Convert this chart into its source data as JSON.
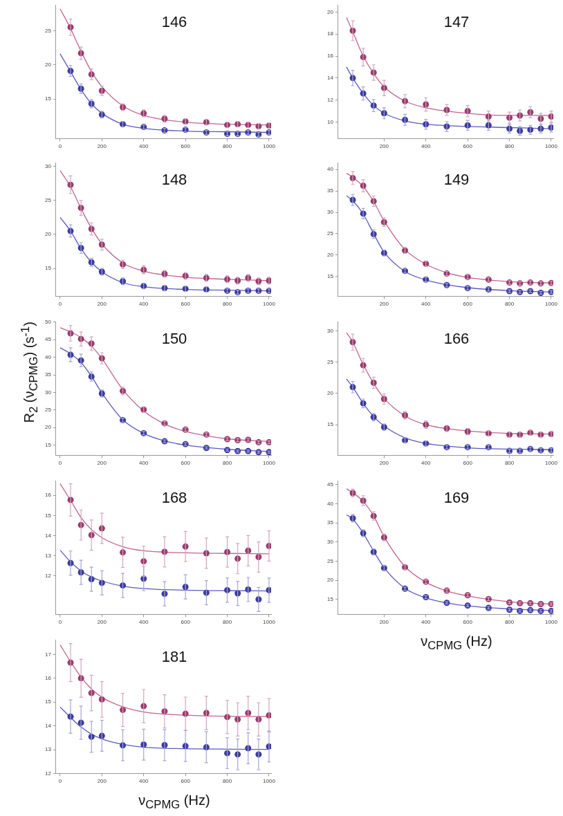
{
  "chart_data": [
    {
      "type": "scatter",
      "title": "146",
      "x": [
        50,
        100,
        150,
        200,
        300,
        400,
        500,
        600,
        700,
        800,
        850,
        900,
        950,
        1000
      ],
      "xlim": [
        -20,
        1010
      ],
      "xticks": [
        0,
        200,
        400,
        600,
        800,
        1000
      ],
      "ylim": [
        9.2,
        28.7
      ],
      "yticks": [
        15,
        20,
        25
      ],
      "series": [
        {
          "marker": "circle",
          "color": "#9a3a6c",
          "values": [
            25.5,
            21.7,
            18.6,
            16.2,
            13.8,
            12.9,
            12.1,
            11.7,
            11.6,
            11.2,
            11.3,
            11.2,
            11.0,
            11.1
          ],
          "errors": [
            1.2,
            0.9,
            0.8,
            0.7,
            0.5,
            0.5,
            0.5,
            0.4,
            0.4,
            0.4,
            0.4,
            0.4,
            0.4,
            0.4
          ]
        },
        {
          "marker": "circle",
          "color": "#3b3aa0",
          "values": [
            19.1,
            16.5,
            14.3,
            12.7,
            11.3,
            10.9,
            10.4,
            10.5,
            10.1,
            9.9,
            9.9,
            10.1,
            9.8,
            10.1
          ],
          "errors": [
            0.8,
            0.7,
            0.6,
            0.5,
            0.4,
            0.3,
            0.3,
            0.3,
            0.3,
            0.3,
            0.3,
            0.3,
            0.3,
            0.3
          ]
        },
        {
          "type": "line",
          "color": "#c0648f",
          "x": [
            0,
            50,
            100,
            150,
            200,
            300,
            400,
            600,
            800,
            1000
          ],
          "values": [
            28.2,
            25.3,
            22.0,
            19.0,
            16.8,
            14.0,
            12.6,
            11.6,
            11.3,
            11.2
          ]
        },
        {
          "type": "line",
          "color": "#5a5ac0",
          "x": [
            0,
            50,
            100,
            150,
            200,
            300,
            400,
            600,
            800,
            1000
          ],
          "values": [
            21.6,
            19.0,
            16.4,
            14.3,
            12.9,
            11.3,
            10.7,
            10.3,
            10.2,
            10.1
          ]
        }
      ]
    },
    {
      "type": "scatter",
      "title": "147",
      "x": [
        50,
        100,
        150,
        200,
        300,
        400,
        500,
        600,
        700,
        800,
        850,
        900,
        950,
        1000
      ],
      "xlim": [
        -20,
        1010
      ],
      "xticks": [
        200,
        400,
        600,
        800,
        1000
      ],
      "ylim": [
        8.5,
        20.6
      ],
      "yticks": [
        10,
        12,
        14,
        16,
        18,
        20
      ],
      "series": [
        {
          "marker": "circle",
          "color": "#9a3a6c",
          "values": [
            18.3,
            15.9,
            14.5,
            13.1,
            11.9,
            11.6,
            11.1,
            11.0,
            10.5,
            10.4,
            10.6,
            10.9,
            10.3,
            10.5
          ],
          "errors": [
            0.9,
            0.8,
            0.7,
            0.7,
            0.6,
            0.6,
            0.5,
            0.5,
            0.5,
            0.5,
            0.5,
            0.5,
            0.5,
            0.5
          ]
        },
        {
          "marker": "circle",
          "color": "#3b3aa0",
          "values": [
            14.0,
            12.6,
            11.5,
            10.8,
            10.2,
            9.8,
            9.6,
            9.7,
            9.7,
            9.4,
            9.2,
            9.3,
            9.4,
            9.5
          ],
          "errors": [
            0.7,
            0.6,
            0.55,
            0.5,
            0.5,
            0.45,
            0.45,
            0.45,
            0.45,
            0.4,
            0.4,
            0.4,
            0.4,
            0.4
          ]
        },
        {
          "type": "line",
          "color": "#c0648f",
          "x": [
            20,
            50,
            100,
            150,
            200,
            300,
            400,
            600,
            800,
            1000
          ],
          "values": [
            19.5,
            18.2,
            16.0,
            14.4,
            13.2,
            11.9,
            11.3,
            10.8,
            10.6,
            10.6
          ]
        },
        {
          "type": "line",
          "color": "#5a5ac0",
          "x": [
            20,
            50,
            100,
            150,
            200,
            300,
            400,
            600,
            800,
            1000
          ],
          "values": [
            15.0,
            14.0,
            12.6,
            11.5,
            10.8,
            10.1,
            9.8,
            9.6,
            9.5,
            9.4
          ]
        }
      ]
    },
    {
      "type": "scatter",
      "title": "148",
      "x": [
        50,
        100,
        150,
        200,
        300,
        400,
        500,
        600,
        700,
        800,
        850,
        900,
        950,
        1000
      ],
      "xlim": [
        -20,
        1010
      ],
      "xticks": [
        0,
        200,
        400,
        600,
        800,
        1000
      ],
      "ylim": [
        10.9,
        30.5
      ],
      "yticks": [
        15,
        20,
        25,
        30
      ],
      "series": [
        {
          "marker": "circle",
          "color": "#9a3a6c",
          "values": [
            27.3,
            23.9,
            20.8,
            18.5,
            15.6,
            14.8,
            14.2,
            13.9,
            13.6,
            13.4,
            13.2,
            13.6,
            13.1,
            13.2
          ],
          "errors": [
            1.3,
            1.1,
            0.9,
            0.8,
            0.6,
            0.6,
            0.5,
            0.5,
            0.5,
            0.5,
            0.5,
            0.5,
            0.5,
            0.5
          ]
        },
        {
          "marker": "circle",
          "color": "#3b3aa0",
          "values": [
            20.5,
            18.0,
            15.9,
            14.5,
            13.1,
            12.4,
            12.1,
            12.0,
            11.9,
            11.7,
            11.5,
            11.7,
            11.7,
            11.7
          ],
          "errors": [
            0.9,
            0.8,
            0.6,
            0.5,
            0.5,
            0.4,
            0.4,
            0.4,
            0.4,
            0.3,
            0.3,
            0.3,
            0.3,
            0.3
          ]
        },
        {
          "type": "line",
          "color": "#c0648f",
          "x": [
            0,
            50,
            100,
            150,
            200,
            300,
            400,
            600,
            800,
            1000
          ],
          "values": [
            29.4,
            27.0,
            23.8,
            20.9,
            18.6,
            15.8,
            14.6,
            13.7,
            13.4,
            13.2
          ]
        },
        {
          "type": "line",
          "color": "#5a5ac0",
          "x": [
            0,
            50,
            100,
            150,
            200,
            300,
            400,
            600,
            800,
            1000
          ],
          "values": [
            22.5,
            20.5,
            17.9,
            15.9,
            14.5,
            12.9,
            12.3,
            11.9,
            11.8,
            11.7
          ]
        }
      ]
    },
    {
      "type": "scatter",
      "title": "149",
      "x": [
        50,
        100,
        150,
        200,
        300,
        400,
        500,
        600,
        700,
        800,
        850,
        900,
        950,
        1000
      ],
      "xlim": [
        -20,
        1010
      ],
      "xticks": [
        200,
        400,
        600,
        800,
        1000
      ],
      "ylim": [
        10.4,
        41.5
      ],
      "yticks": [
        15,
        20,
        25,
        30,
        35,
        40
      ],
      "series": [
        {
          "marker": "circle",
          "color": "#9a3a6c",
          "values": [
            38.0,
            36.2,
            32.6,
            27.7,
            21.1,
            18.0,
            15.7,
            14.9,
            14.3,
            13.6,
            13.4,
            13.6,
            13.4,
            13.5
          ],
          "errors": [
            1.5,
            1.4,
            1.2,
            1.0,
            0.7,
            0.6,
            0.5,
            0.5,
            0.4,
            0.4,
            0.4,
            0.4,
            0.4,
            0.4
          ]
        },
        {
          "marker": "circle",
          "color": "#3b3aa0",
          "values": [
            32.9,
            29.7,
            24.9,
            20.5,
            16.3,
            14.3,
            13.0,
            12.3,
            12.0,
            11.6,
            11.4,
            11.6,
            11.2,
            11.4
          ],
          "errors": [
            1.3,
            1.2,
            1.0,
            0.7,
            0.5,
            0.5,
            0.4,
            0.4,
            0.4,
            0.3,
            0.3,
            0.3,
            0.3,
            0.3
          ]
        },
        {
          "type": "line",
          "color": "#c0648f",
          "x": [
            20,
            50,
            100,
            150,
            200,
            300,
            400,
            500,
            600,
            800,
            1000
          ],
          "values": [
            39.1,
            38.2,
            36.0,
            32.5,
            28.0,
            21.3,
            17.9,
            15.9,
            14.8,
            13.8,
            13.5
          ]
        },
        {
          "type": "line",
          "color": "#5a5ac0",
          "x": [
            20,
            50,
            100,
            150,
            200,
            300,
            400,
            500,
            600,
            800,
            1000
          ],
          "values": [
            33.9,
            32.7,
            29.6,
            25.0,
            20.7,
            16.2,
            14.2,
            13.1,
            12.4,
            11.7,
            11.4
          ]
        }
      ]
    },
    {
      "type": "scatter",
      "title": "150",
      "ylabel": "R$_{2}$ (ν$_{CPMG}$) (s$^{-1}$)",
      "x": [
        50,
        100,
        150,
        200,
        300,
        400,
        500,
        600,
        700,
        800,
        850,
        900,
        950,
        1000
      ],
      "xlim": [
        -20,
        1010
      ],
      "xticks": [
        0,
        200,
        400,
        600,
        800,
        1000
      ],
      "ylim": [
        12.1,
        50
      ],
      "yticks": [
        15,
        20,
        25,
        30,
        35,
        40,
        45,
        50
      ],
      "series": [
        {
          "marker": "circle",
          "color": "#9a3a6c",
          "values": [
            46.8,
            45.2,
            43.9,
            39.7,
            30.4,
            25.1,
            21.2,
            19.4,
            18.0,
            16.7,
            16.4,
            16.5,
            15.8,
            15.8
          ],
          "errors": [
            2.2,
            2.0,
            1.9,
            1.6,
            1.1,
            0.8,
            0.6,
            0.5,
            0.5,
            0.4,
            0.4,
            0.4,
            0.4,
            0.4
          ]
        },
        {
          "marker": "circle",
          "color": "#3b3aa0",
          "values": [
            40.7,
            39.1,
            34.5,
            29.7,
            22.1,
            18.4,
            16.1,
            15.3,
            14.2,
            13.6,
            13.3,
            13.3,
            13.0,
            13.0
          ],
          "errors": [
            2.0,
            1.8,
            1.3,
            1.0,
            0.6,
            0.5,
            0.4,
            0.4,
            0.3,
            0.3,
            0.3,
            0.3,
            0.3,
            0.3
          ]
        },
        {
          "type": "line",
          "color": "#c0648f",
          "x": [
            0,
            50,
            100,
            150,
            200,
            300,
            400,
            500,
            600,
            800,
            1000
          ],
          "values": [
            48.4,
            47.2,
            45.6,
            43.2,
            39.6,
            30.8,
            24.7,
            21.0,
            18.9,
            16.8,
            16.0
          ]
        },
        {
          "type": "line",
          "color": "#5a5ac0",
          "x": [
            0,
            50,
            100,
            150,
            200,
            300,
            400,
            500,
            600,
            800,
            1000
          ],
          "values": [
            42.7,
            41.0,
            38.5,
            34.6,
            29.8,
            22.2,
            18.3,
            16.2,
            15.0,
            13.8,
            13.2
          ]
        }
      ]
    },
    {
      "type": "scatter",
      "title": "166",
      "x": [
        50,
        100,
        150,
        200,
        300,
        400,
        500,
        600,
        700,
        800,
        850,
        900,
        950,
        1000
      ],
      "xlim": [
        -20,
        1010
      ],
      "xticks": [
        200,
        400,
        600,
        800,
        1000
      ],
      "ylim": [
        10.1,
        31.4
      ],
      "yticks": [
        15,
        20,
        25,
        30
      ],
      "series": [
        {
          "marker": "circle",
          "color": "#9a3a6c",
          "values": [
            28.2,
            24.5,
            21.7,
            19.1,
            16.5,
            15.0,
            14.4,
            13.9,
            13.6,
            13.4,
            13.4,
            13.7,
            13.4,
            13.5
          ],
          "errors": [
            1.3,
            1.1,
            0.9,
            0.8,
            0.6,
            0.6,
            0.5,
            0.5,
            0.4,
            0.4,
            0.4,
            0.4,
            0.4,
            0.4
          ]
        },
        {
          "marker": "circle",
          "color": "#3b3aa0",
          "values": [
            21.0,
            18.4,
            16.2,
            14.6,
            12.5,
            12.0,
            11.4,
            11.4,
            11.4,
            10.8,
            10.8,
            11.1,
            10.9,
            10.9
          ],
          "errors": [
            0.9,
            0.7,
            0.6,
            0.5,
            0.4,
            0.4,
            0.3,
            0.3,
            0.3,
            0.3,
            0.3,
            0.3,
            0.3,
            0.3
          ]
        },
        {
          "type": "line",
          "color": "#c0648f",
          "x": [
            20,
            50,
            100,
            150,
            200,
            300,
            400,
            600,
            800,
            1000
          ],
          "values": [
            29.7,
            28.2,
            24.6,
            21.6,
            19.2,
            16.4,
            15.0,
            14.0,
            13.6,
            13.5
          ]
        },
        {
          "type": "line",
          "color": "#5a5ac0",
          "x": [
            20,
            50,
            100,
            150,
            200,
            300,
            400,
            600,
            800,
            1000
          ],
          "values": [
            22.3,
            21.0,
            18.4,
            16.3,
            14.8,
            12.9,
            12.0,
            11.3,
            11.1,
            11.0
          ]
        }
      ]
    },
    {
      "type": "scatter",
      "title": "168",
      "x": [
        50,
        100,
        150,
        200,
        300,
        400,
        500,
        600,
        700,
        800,
        850,
        900,
        950,
        1000
      ],
      "xlim": [
        -20,
        1010
      ],
      "xticks": [
        0,
        200,
        400,
        600,
        800,
        1000
      ],
      "ylim": [
        10.1,
        16.7
      ],
      "yticks": [
        12,
        13,
        14,
        15,
        16
      ],
      "series": [
        {
          "marker": "circle",
          "color": "#9a3a6c",
          "values": [
            15.77,
            14.53,
            14.03,
            14.36,
            13.17,
            12.73,
            13.2,
            13.46,
            13.13,
            13.19,
            12.86,
            13.26,
            12.94,
            13.49
          ],
          "errors": [
            0.8,
            0.75,
            0.75,
            0.75,
            0.75,
            0.75,
            0.75,
            0.75,
            0.75,
            0.75,
            0.75,
            0.75,
            0.75,
            0.75
          ]
        },
        {
          "marker": "circle",
          "color": "#3b3aa0",
          "values": [
            12.64,
            12.18,
            11.84,
            11.66,
            11.53,
            11.87,
            11.12,
            11.46,
            11.17,
            11.3,
            11.14,
            11.33,
            10.84,
            11.3
          ],
          "errors": [
            0.6,
            0.6,
            0.6,
            0.6,
            0.6,
            0.6,
            0.6,
            0.6,
            0.6,
            0.6,
            0.6,
            0.6,
            0.6,
            0.6
          ]
        },
        {
          "type": "line",
          "color": "#c0648f",
          "x": [
            0,
            50,
            100,
            150,
            200,
            300,
            400,
            600,
            800,
            1000
          ],
          "values": [
            16.58,
            15.75,
            14.9,
            14.3,
            13.9,
            13.45,
            13.25,
            13.15,
            13.12,
            13.1
          ]
        },
        {
          "type": "line",
          "color": "#5a5ac0",
          "x": [
            0,
            50,
            100,
            150,
            200,
            300,
            400,
            600,
            800,
            1000
          ],
          "values": [
            13.28,
            12.7,
            12.25,
            11.95,
            11.75,
            11.5,
            11.38,
            11.3,
            11.27,
            11.26
          ]
        }
      ]
    },
    {
      "type": "scatter",
      "title": "169",
      "xlabel": "ν$_{CPMG}$ (Hz)",
      "x": [
        50,
        100,
        150,
        200,
        300,
        400,
        500,
        600,
        700,
        800,
        850,
        900,
        950,
        1000
      ],
      "xlim": [
        -20,
        1010
      ],
      "xticks": [
        200,
        400,
        600,
        800,
        1000
      ],
      "ylim": [
        11.1,
        45.9
      ],
      "yticks": [
        15,
        20,
        25,
        30,
        35,
        40,
        45
      ],
      "series": [
        {
          "marker": "circle",
          "color": "#9a3a6c",
          "values": [
            42.8,
            40.8,
            36.8,
            31.2,
            23.4,
            19.6,
            17.3,
            16.1,
            15.1,
            14.2,
            14.0,
            14.0,
            13.8,
            13.8
          ],
          "errors": [
            1.0,
            1.3,
            1.1,
            0.9,
            0.6,
            0.5,
            0.4,
            0.4,
            0.4,
            0.3,
            0.3,
            0.3,
            0.3,
            0.3
          ]
        },
        {
          "marker": "circle",
          "color": "#3b3aa0",
          "values": [
            36.2,
            32.3,
            27.4,
            23.2,
            17.8,
            15.6,
            14.1,
            13.4,
            12.8,
            12.3,
            12.0,
            12.2,
            12.0,
            12.0
          ],
          "errors": [
            1.0,
            0.9,
            0.8,
            0.6,
            0.4,
            0.4,
            0.3,
            0.3,
            0.3,
            0.3,
            0.3,
            0.3,
            0.3,
            0.3
          ]
        },
        {
          "type": "line",
          "color": "#c0648f",
          "x": [
            20,
            50,
            100,
            150,
            200,
            300,
            400,
            500,
            600,
            800,
            1000
          ],
          "values": [
            43.9,
            42.9,
            40.6,
            36.8,
            31.4,
            23.6,
            19.5,
            17.2,
            15.9,
            14.4,
            13.8
          ]
        },
        {
          "type": "line",
          "color": "#5a5ac0",
          "x": [
            20,
            50,
            100,
            150,
            200,
            300,
            400,
            500,
            600,
            800,
            1000
          ],
          "values": [
            37.1,
            36.0,
            32.3,
            27.6,
            23.3,
            17.9,
            15.4,
            14.1,
            13.3,
            12.5,
            12.1
          ]
        }
      ]
    },
    {
      "type": "scatter",
      "title": "181",
      "xlabel": "ν$_{CPMG}$ (Hz)",
      "x": [
        50,
        100,
        150,
        200,
        300,
        400,
        500,
        600,
        700,
        800,
        850,
        900,
        950,
        1000
      ],
      "xlim": [
        -20,
        1010
      ],
      "xticks": [
        0,
        200,
        400,
        600,
        800,
        1000
      ],
      "ylim": [
        12,
        17.6
      ],
      "yticks": [
        12,
        13,
        14,
        15,
        16,
        17
      ],
      "series": [
        {
          "marker": "circle",
          "color": "#9a3a6c",
          "values": [
            16.66,
            16.0,
            15.38,
            15.11,
            14.67,
            14.83,
            14.61,
            14.51,
            14.54,
            14.37,
            14.27,
            14.54,
            14.27,
            14.44
          ],
          "errors": [
            0.8,
            0.8,
            0.75,
            0.75,
            0.7,
            0.7,
            0.7,
            0.7,
            0.7,
            0.7,
            0.7,
            0.7,
            0.7,
            0.7
          ]
        },
        {
          "marker": "circle",
          "color": "#3b3aa0",
          "values": [
            14.39,
            14.13,
            13.54,
            13.58,
            13.18,
            13.21,
            13.19,
            13.15,
            13.1,
            12.85,
            12.8,
            13.06,
            12.8,
            13.13
          ],
          "errors": [
            0.7,
            0.7,
            0.65,
            0.65,
            0.65,
            0.65,
            0.65,
            0.65,
            0.65,
            0.65,
            0.65,
            0.65,
            0.65,
            0.65
          ]
        },
        {
          "type": "line",
          "color": "#c0648f",
          "x": [
            0,
            50,
            100,
            150,
            200,
            300,
            400,
            600,
            800,
            1000
          ],
          "values": [
            17.4,
            16.7,
            16.05,
            15.55,
            15.2,
            14.8,
            14.58,
            14.45,
            14.4,
            14.39
          ]
        },
        {
          "type": "line",
          "color": "#5a5ac0",
          "x": [
            0,
            50,
            100,
            150,
            200,
            300,
            400,
            600,
            800,
            1000
          ],
          "values": [
            14.79,
            14.35,
            13.95,
            13.65,
            13.45,
            13.22,
            13.1,
            13.04,
            13.02,
            13.01
          ]
        }
      ]
    }
  ]
}
